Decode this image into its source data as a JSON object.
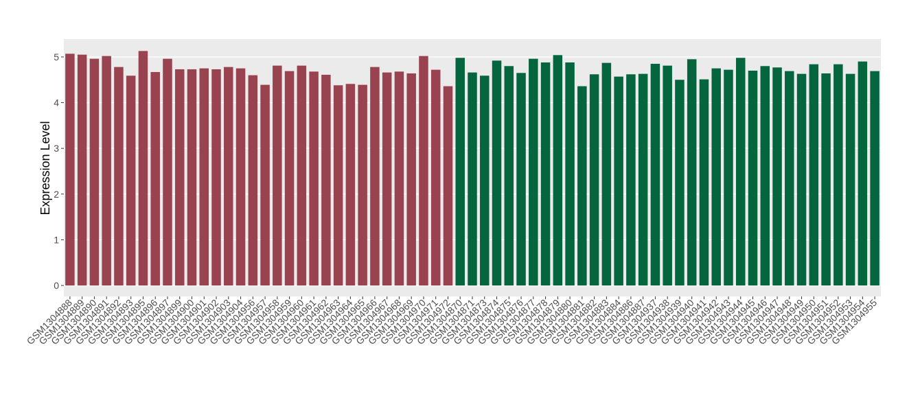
{
  "chart_data": {
    "type": "bar",
    "y_label": "Expression Level",
    "categories": [
      "GSM1304888",
      "GSM1304889",
      "GSM1304890",
      "GSM1304891",
      "GSM1304892",
      "GSM1304893",
      "GSM1304895",
      "GSM1304896",
      "GSM1304897",
      "GSM1304899",
      "GSM1304900",
      "GSM1304901",
      "GSM1304902",
      "GSM1304903",
      "GSM1304904",
      "GSM1304956",
      "GSM1304957",
      "GSM1304958",
      "GSM1304959",
      "GSM1304960",
      "GSM1304961",
      "GSM1304962",
      "GSM1304963",
      "GSM1304964",
      "GSM1304965",
      "GSM1304966",
      "GSM1304967",
      "GSM1304968",
      "GSM1304969",
      "GSM1304970",
      "GSM1304971",
      "GSM1304972",
      "GSM1304870",
      "GSM1304871",
      "GSM1304873",
      "GSM1304874",
      "GSM1304875",
      "GSM1304876",
      "GSM1304877",
      "GSM1304878",
      "GSM1304879",
      "GSM1304880",
      "GSM1304881",
      "GSM1304882",
      "GSM1304883",
      "GSM1304884",
      "GSM1304886",
      "GSM1304887",
      "GSM1304937",
      "GSM1304938",
      "GSM1304939",
      "GSM1304940",
      "GSM1304941",
      "GSM1304942",
      "GSM1304943",
      "GSM1304944",
      "GSM1304945",
      "GSM1304946",
      "GSM1304947",
      "GSM1304948",
      "GSM1304949",
      "GSM1304950",
      "GSM1304951",
      "GSM1304952",
      "GSM1304953",
      "GSM1304954",
      "GSM1304955"
    ],
    "values": [
      5.07,
      5.05,
      4.96,
      5.02,
      4.78,
      4.59,
      5.13,
      4.67,
      4.96,
      4.73,
      4.73,
      4.75,
      4.73,
      4.78,
      4.75,
      4.6,
      4.39,
      4.81,
      4.69,
      4.81,
      4.68,
      4.61,
      4.38,
      4.41,
      4.39,
      4.78,
      4.66,
      4.68,
      4.64,
      5.02,
      4.72,
      4.36,
      4.98,
      4.66,
      4.59,
      4.92,
      4.8,
      4.65,
      4.96,
      4.88,
      5.04,
      4.88,
      4.36,
      4.62,
      4.87,
      4.57,
      4.62,
      4.63,
      4.85,
      4.81,
      4.5,
      4.95,
      4.51,
      4.75,
      4.72,
      4.98,
      4.7,
      4.8,
      4.77,
      4.69,
      4.63,
      4.84,
      4.64,
      4.84,
      4.63,
      4.9,
      4.69
    ],
    "colors": [
      "#9a4350",
      "#9a4350",
      "#9a4350",
      "#9a4350",
      "#9a4350",
      "#9a4350",
      "#9a4350",
      "#9a4350",
      "#9a4350",
      "#9a4350",
      "#9a4350",
      "#9a4350",
      "#9a4350",
      "#9a4350",
      "#9a4350",
      "#9a4350",
      "#9a4350",
      "#9a4350",
      "#9a4350",
      "#9a4350",
      "#9a4350",
      "#9a4350",
      "#9a4350",
      "#9a4350",
      "#9a4350",
      "#9a4350",
      "#9a4350",
      "#9a4350",
      "#9a4350",
      "#9a4350",
      "#9a4350",
      "#9a4350",
      "#05653f",
      "#05653f",
      "#05653f",
      "#05653f",
      "#05653f",
      "#05653f",
      "#05653f",
      "#05653f",
      "#05653f",
      "#05653f",
      "#05653f",
      "#05653f",
      "#05653f",
      "#05653f",
      "#05653f",
      "#05653f",
      "#05653f",
      "#05653f",
      "#05653f",
      "#05653f",
      "#05653f",
      "#05653f",
      "#05653f",
      "#05653f",
      "#05653f",
      "#05653f",
      "#05653f",
      "#05653f",
      "#05653f",
      "#05653f",
      "#05653f",
      "#05653f",
      "#05653f",
      "#05653f",
      "#05653f"
    ],
    "ylim": [
      -0.24,
      5.39
    ],
    "yticks": [
      0,
      1,
      2,
      3,
      4,
      5
    ],
    "grid": true
  }
}
